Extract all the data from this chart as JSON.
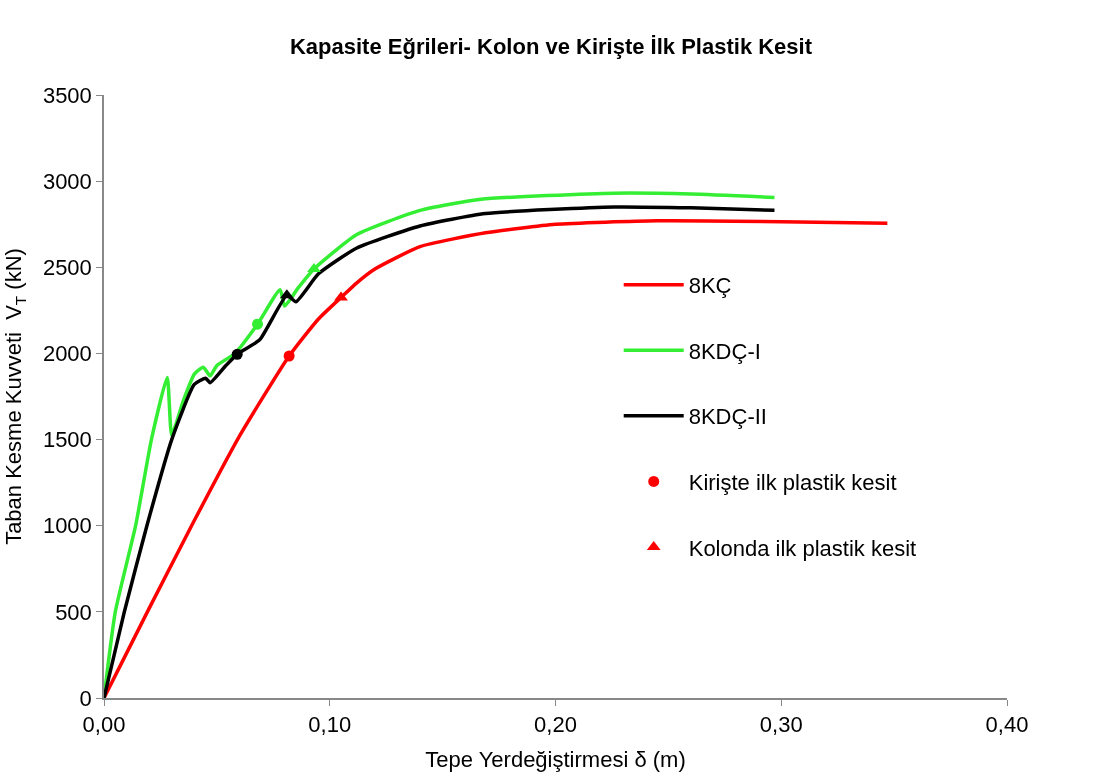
{
  "chart_data": {
    "type": "line",
    "title": "Kapasite Eğrileri- Kolon ve Kirişte İlk Plastik Kesit",
    "xlabel": "Tepe Yerdeğiştirmesi δ (m)",
    "ylabel": "Taban Kesme Kuvveti  V$_{T}$ (kN)",
    "xlim": [
      0,
      0.4
    ],
    "xticks": [
      {
        "value": 0,
        "label": "0,00"
      },
      {
        "value": 0.1,
        "label": "0,10"
      },
      {
        "value": 0.2,
        "label": "0,20"
      },
      {
        "value": 0.3,
        "label": "0,30"
      },
      {
        "value": 0.4,
        "label": "0,40"
      }
    ],
    "ylim": [
      0,
      3500
    ],
    "yticks": [
      0,
      500,
      1000,
      1500,
      2000,
      2500,
      3000,
      3500
    ],
    "legend": "right",
    "marker": "none",
    "line_style": "solid",
    "series": [
      {
        "name": "8KÇ",
        "color": "#ff0000",
        "x": [
          0,
          0.02,
          0.04,
          0.06,
          0.082,
          0.095,
          0.105,
          0.112,
          0.12,
          0.14,
          0.169,
          0.2,
          0.245,
          0.3,
          0.347
        ],
        "values": [
          0,
          520,
          1030,
          1520,
          1985,
          2200,
          2325,
          2410,
          2490,
          2620,
          2700,
          2750,
          2770,
          2765,
          2755
        ]
      },
      {
        "name": "8KDÇ-I",
        "color": "#33ee33",
        "x": [
          0,
          0.005,
          0.014,
          0.021,
          0.028,
          0.03,
          0.035,
          0.04,
          0.044,
          0.047,
          0.05,
          0.058,
          0.068,
          0.078,
          0.08,
          0.086,
          0.093,
          0.112,
          0.14,
          0.167,
          0.226,
          0.26,
          0.297
        ],
        "values": [
          0,
          500,
          1000,
          1500,
          1860,
          1525,
          1720,
          1880,
          1920,
          1870,
          1930,
          2000,
          2170,
          2370,
          2275,
          2380,
          2490,
          2690,
          2830,
          2895,
          2930,
          2925,
          2905
        ]
      },
      {
        "name": "8KDÇ-II",
        "color": "#000000",
        "x": [
          0,
          0.009,
          0.019,
          0.03,
          0.04,
          0.045,
          0.047,
          0.054,
          0.059,
          0.069,
          0.081,
          0.085,
          0.095,
          0.112,
          0.14,
          0.169,
          0.226,
          0.26,
          0.297
        ],
        "values": [
          0,
          500,
          1000,
          1500,
          1820,
          1856,
          1830,
          1930,
          1995,
          2080,
          2337,
          2300,
          2462,
          2612,
          2740,
          2812,
          2850,
          2845,
          2831
        ]
      },
      {
        "name": "Kirişte ilk plastik kesit",
        "type": "scatter",
        "marker": "circle",
        "x": [
          0.082,
          0.068,
          0.059
        ],
        "values": [
          1985,
          2170,
          1995
        ],
        "colors": [
          "#ff0000",
          "#33ee33",
          "#000000"
        ]
      },
      {
        "name": "Kolonda ilk plastik kesit",
        "type": "scatter",
        "marker": "triangle",
        "x": [
          0.105,
          0.093,
          0.081
        ],
        "values": [
          2325,
          2490,
          2337
        ],
        "colors": [
          "#ff0000",
          "#33ee33",
          "#000000"
        ]
      }
    ]
  }
}
